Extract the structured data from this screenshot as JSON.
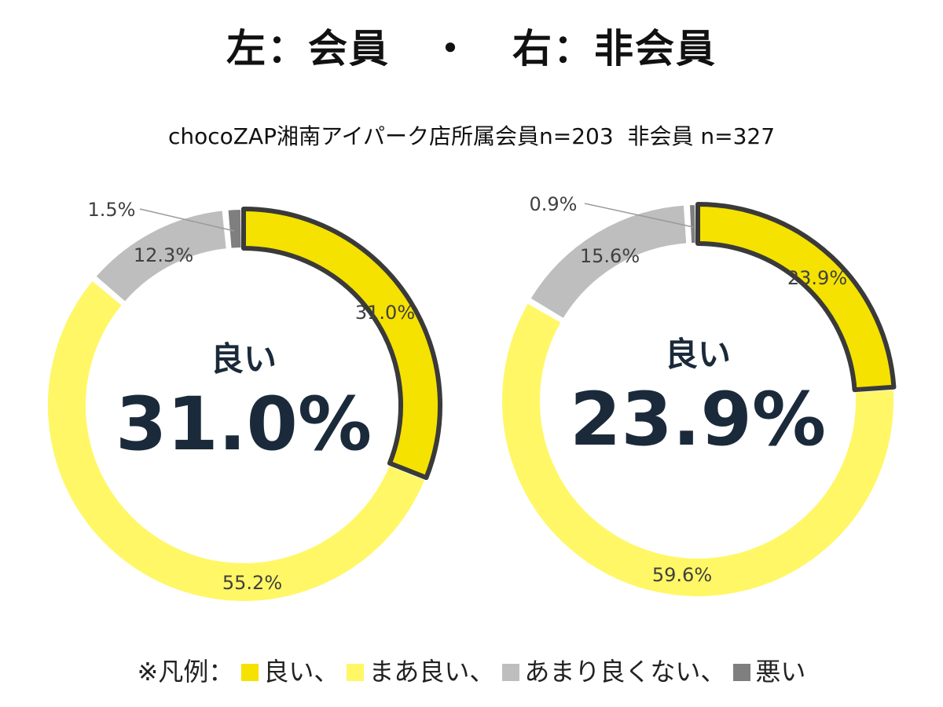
{
  "title": "左：会員　・　右：非会員",
  "subtitle": "chocoZAP湘南アイパーク店所属会員n=203  非会員 n=327",
  "legend": {
    "prefix": "※凡例：",
    "items": [
      {
        "label": "良い、",
        "color": "#F5E200"
      },
      {
        "label": "まあ良い、",
        "color": "#FFF766"
      },
      {
        "label": "あまり良くない、",
        "color": "#BEBEBE"
      },
      {
        "label": "悪い",
        "color": "#7F7F7F"
      }
    ]
  },
  "chart_data": [
    {
      "type": "pie",
      "categories": [
        "良い",
        "まあ良い",
        "あまり良くない",
        "悪い"
      ],
      "values": [
        31.0,
        55.2,
        12.3,
        1.5
      ],
      "labels": [
        "31.0%",
        "55.2%",
        "12.3%",
        "1.5%"
      ],
      "colors": [
        "#F5E200",
        "#FFF766",
        "#BEBEBE",
        "#7F7F7F"
      ],
      "center_label": "良い",
      "center_value": "31.0%"
    },
    {
      "type": "pie",
      "categories": [
        "良い",
        "まあ良い",
        "あまり良くない",
        "悪い"
      ],
      "values": [
        23.9,
        59.6,
        15.6,
        0.9
      ],
      "labels": [
        "23.9%",
        "59.6%",
        "15.6%",
        "0.9%"
      ],
      "colors": [
        "#F5E200",
        "#FFF766",
        "#BEBEBE",
        "#7F7F7F"
      ],
      "center_label": "良い",
      "center_value": "23.9%"
    }
  ]
}
